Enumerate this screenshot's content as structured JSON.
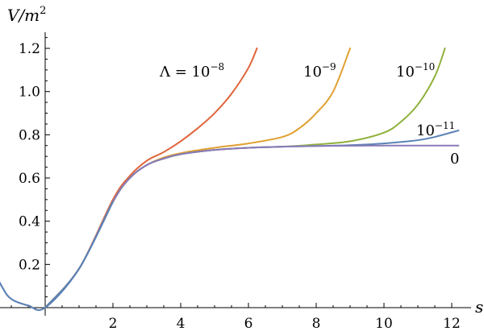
{
  "chart_data": {
    "type": "line",
    "xlabel": "s",
    "ylabel": "V/m²",
    "ylabel_parts": {
      "v": "V/m",
      "sup": "2"
    },
    "xlim": [
      -3.5,
      12.3
    ],
    "ylim": [
      0,
      1.25
    ],
    "x_ticks": [
      2,
      4,
      6,
      8,
      10,
      12
    ],
    "y_ticks": [
      0.2,
      0.4,
      0.6,
      0.8,
      1.0,
      1.2
    ],
    "x_tick_labels": [
      "2",
      "4",
      "6",
      "8",
      "10",
      "12"
    ],
    "y_tick_labels": [
      "0.2",
      "0.4",
      "0.6",
      "0.8",
      "1.0",
      "1.2"
    ],
    "grid": false,
    "series": [
      {
        "name": "Λ = 10⁻⁸",
        "label_parts": {
          "base": "Λ = 10",
          "sup": "−8"
        },
        "color": "#e0643a",
        "points": [
          [
            0,
            0
          ],
          [
            1,
            0.18
          ],
          [
            2,
            0.5
          ],
          [
            2.5,
            0.61
          ],
          [
            3,
            0.68
          ],
          [
            3.5,
            0.72
          ],
          [
            4,
            0.77
          ],
          [
            4.5,
            0.83
          ],
          [
            5,
            0.9
          ],
          [
            5.5,
            0.99
          ],
          [
            6,
            1.11
          ],
          [
            6.25,
            1.2
          ]
        ]
      },
      {
        "name": "10⁻⁹",
        "label_parts": {
          "base": "10",
          "sup": "−9"
        },
        "color": "#e0a030",
        "points": [
          [
            0,
            0
          ],
          [
            1,
            0.18
          ],
          [
            2,
            0.49
          ],
          [
            2.5,
            0.6
          ],
          [
            3,
            0.66
          ],
          [
            3.5,
            0.695
          ],
          [
            4,
            0.715
          ],
          [
            5,
            0.74
          ],
          [
            6,
            0.76
          ],
          [
            7,
            0.79
          ],
          [
            7.5,
            0.83
          ],
          [
            8,
            0.9
          ],
          [
            8.5,
            1.0
          ],
          [
            9,
            1.2
          ]
        ]
      },
      {
        "name": "10⁻¹⁰",
        "label_parts": {
          "base": "10",
          "sup": "−10"
        },
        "color": "#8fb03a",
        "points": [
          [
            0,
            0
          ],
          [
            1,
            0.18
          ],
          [
            2,
            0.49
          ],
          [
            2.5,
            0.6
          ],
          [
            3,
            0.66
          ],
          [
            3.5,
            0.69
          ],
          [
            4,
            0.71
          ],
          [
            5,
            0.73
          ],
          [
            6,
            0.74
          ],
          [
            7,
            0.745
          ],
          [
            8,
            0.755
          ],
          [
            9,
            0.77
          ],
          [
            10,
            0.81
          ],
          [
            10.5,
            0.86
          ],
          [
            11,
            0.94
          ],
          [
            11.5,
            1.07
          ],
          [
            11.8,
            1.2
          ]
        ]
      },
      {
        "name": "10⁻¹¹",
        "label_parts": {
          "base": "10",
          "sup": "−11"
        },
        "color": "#5b82b5",
        "points": [
          [
            0,
            0
          ],
          [
            1,
            0.18
          ],
          [
            2,
            0.49
          ],
          [
            2.5,
            0.6
          ],
          [
            3,
            0.66
          ],
          [
            3.5,
            0.69
          ],
          [
            4,
            0.71
          ],
          [
            5,
            0.73
          ],
          [
            6,
            0.74
          ],
          [
            7,
            0.745
          ],
          [
            8,
            0.748
          ],
          [
            9,
            0.752
          ],
          [
            10,
            0.76
          ],
          [
            11,
            0.775
          ],
          [
            11.5,
            0.79
          ],
          [
            12.2,
            0.82
          ]
        ]
      },
      {
        "name": "0",
        "label_parts": {
          "base": "0",
          "sup": ""
        },
        "color": "#8a7ab8",
        "points": [
          [
            -3,
            1.23
          ],
          [
            -2.75,
            1.05
          ],
          [
            -2.5,
            0.8
          ],
          [
            -2.25,
            0.58
          ],
          [
            -2,
            0.42
          ],
          [
            -1.75,
            0.28
          ],
          [
            -1.5,
            0.17
          ],
          [
            -1.25,
            0.09
          ],
          [
            -1,
            0.04
          ],
          [
            -0.5,
            0.01
          ],
          [
            0,
            0
          ],
          [
            1,
            0.18
          ],
          [
            2,
            0.49
          ],
          [
            2.5,
            0.6
          ],
          [
            3,
            0.66
          ],
          [
            3.5,
            0.69
          ],
          [
            4,
            0.71
          ],
          [
            5,
            0.73
          ],
          [
            6,
            0.74
          ],
          [
            7,
            0.745
          ],
          [
            8,
            0.748
          ],
          [
            10,
            0.75
          ],
          [
            12.2,
            0.75
          ]
        ]
      },
      {
        "name": "",
        "label_parts": {
          "base": "",
          "sup": ""
        },
        "color": "#5b82b5",
        "points": [
          [
            -3,
            1.23
          ],
          [
            -2.75,
            1.05
          ],
          [
            -2.5,
            0.8
          ],
          [
            -2.25,
            0.58
          ],
          [
            -2,
            0.42
          ],
          [
            -1.75,
            0.28
          ],
          [
            -1.5,
            0.17
          ],
          [
            -1.25,
            0.09
          ],
          [
            -1,
            0.04
          ],
          [
            -0.5,
            0.01
          ],
          [
            0,
            0
          ],
          [
            1,
            0.18
          ],
          [
            2,
            0.49
          ]
        ]
      }
    ]
  }
}
